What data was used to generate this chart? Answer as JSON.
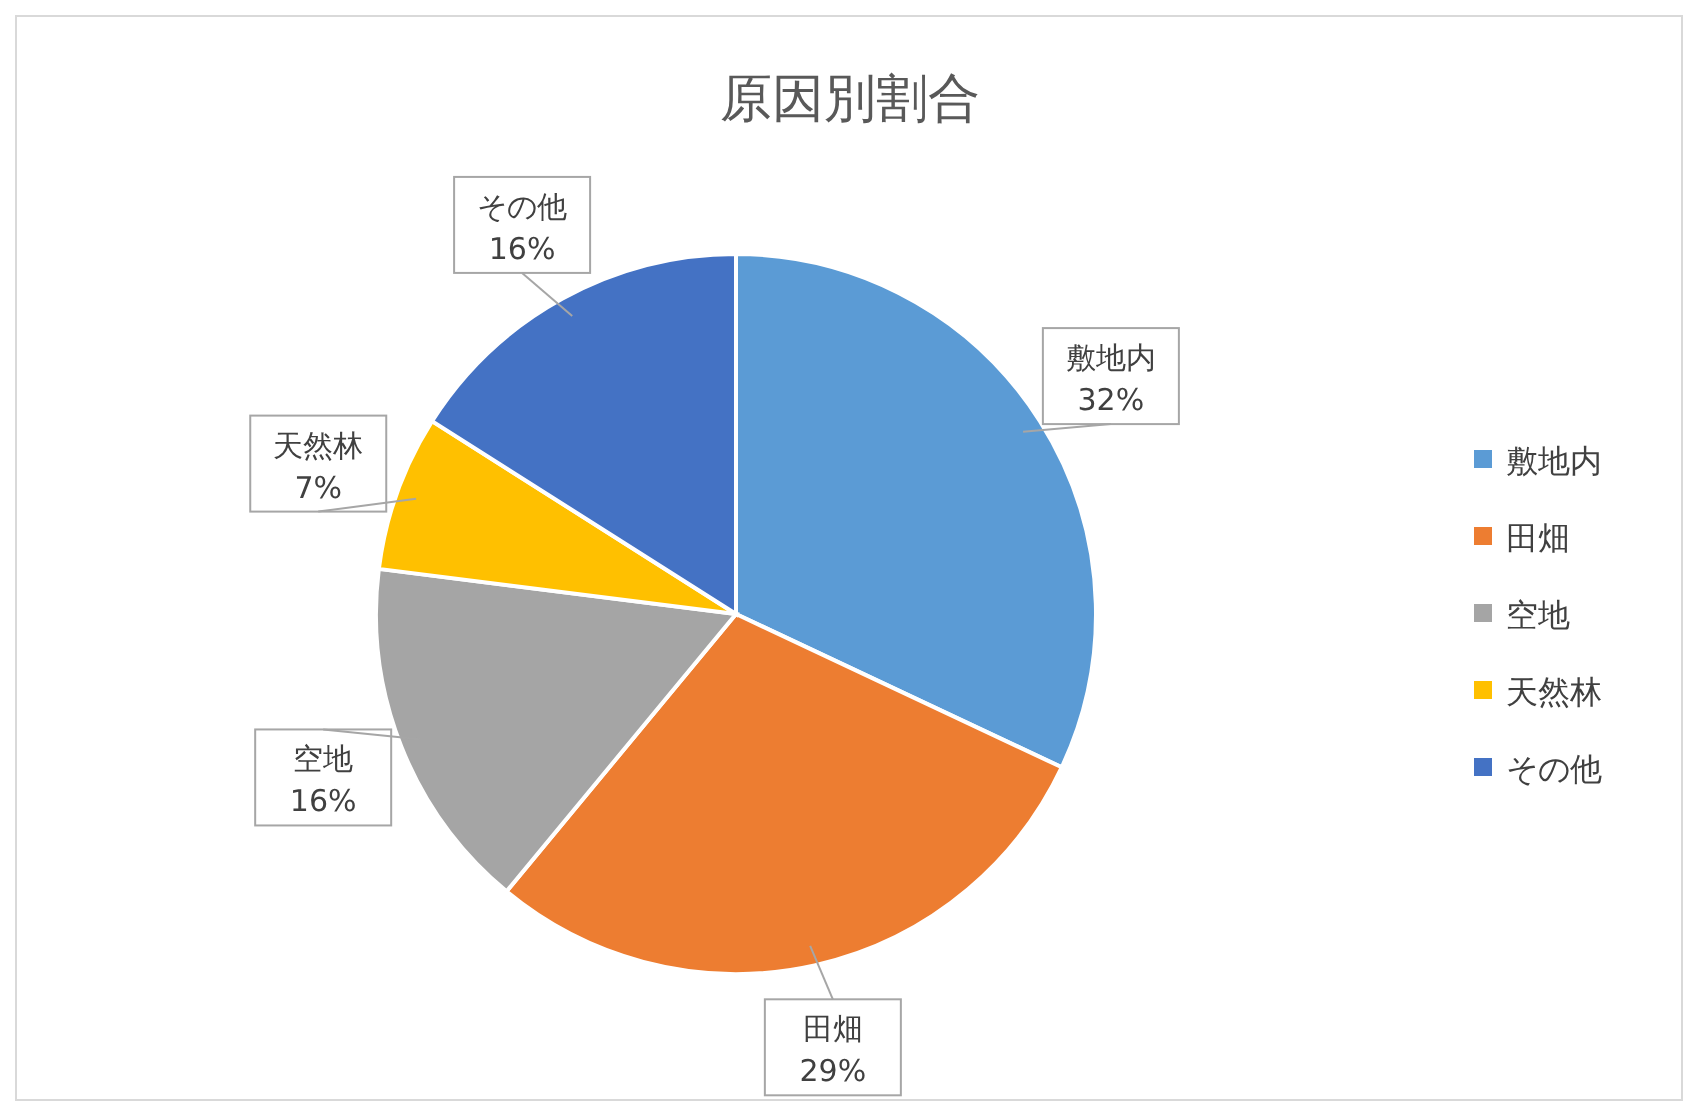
{
  "chart_data": {
    "type": "pie",
    "title": "原因別割合",
    "categories": [
      "敷地内",
      "田畑",
      "空地",
      "天然林",
      "その他"
    ],
    "values": [
      32,
      29,
      16,
      7,
      16
    ],
    "colors": [
      "#5b9bd5",
      "#ed7d31",
      "#a5a5a5",
      "#ffc000",
      "#4472c4"
    ],
    "value_labels": [
      "32%",
      "29%",
      "16%",
      "7%",
      "16%"
    ],
    "legend": "right"
  }
}
